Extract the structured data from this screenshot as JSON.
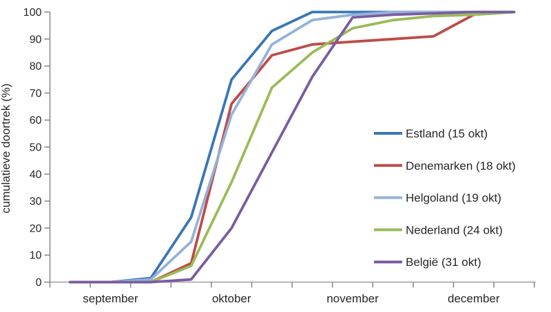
{
  "chart_data": {
    "type": "line",
    "title": "",
    "ylabel": "cumulatieve doortrek (%)",
    "xlabel": "",
    "ylim": [
      0,
      100
    ],
    "ytick_step": 10,
    "gridlines": false,
    "legend_position": "right-middle",
    "categories": [
      "sep-1",
      "sep-2",
      "sep-3",
      "okt-1",
      "okt-2",
      "okt-3",
      "nov-1",
      "nov-2",
      "nov-3",
      "dec-1",
      "dec-2",
      "dec-3"
    ],
    "points_per_month": 3,
    "months": [
      {
        "label": "september",
        "center_point": 1
      },
      {
        "label": "oktober",
        "center_point": 4
      },
      {
        "label": "november",
        "center_point": 7
      },
      {
        "label": "december",
        "center_point": 10
      }
    ],
    "series": [
      {
        "name": "Estland (15 okt)",
        "color": "#3a76b6",
        "values": [
          0,
          0,
          1.5,
          24,
          75,
          93,
          100,
          100,
          100,
          100,
          100,
          100
        ]
      },
      {
        "name": "Denemarken (18 okt)",
        "color": "#be4b48",
        "values": [
          0,
          0,
          0,
          7,
          66,
          84,
          88,
          89,
          90,
          91,
          99,
          100
        ]
      },
      {
        "name": "Helgoland (19 okt)",
        "color": "#94b2d8",
        "values": [
          0,
          0,
          1,
          15,
          62,
          88,
          97,
          99,
          100,
          100,
          100,
          100
        ]
      },
      {
        "name": "Nederland (24 okt)",
        "color": "#9abb59",
        "values": [
          0,
          0,
          0,
          6,
          37,
          72,
          85,
          94,
          97,
          98.5,
          99,
          100
        ]
      },
      {
        "name": "België (31 okt)",
        "color": "#7a5ca1",
        "values": [
          0,
          0,
          0,
          1,
          20,
          48,
          76,
          98,
          99,
          99.5,
          100,
          100
        ]
      }
    ]
  },
  "colors": {
    "y_axis": "#8a8a8a",
    "x_axis": "#b3b3b3",
    "tick": "#8a8a8a",
    "text": "#262626",
    "background": "#ffffff"
  }
}
